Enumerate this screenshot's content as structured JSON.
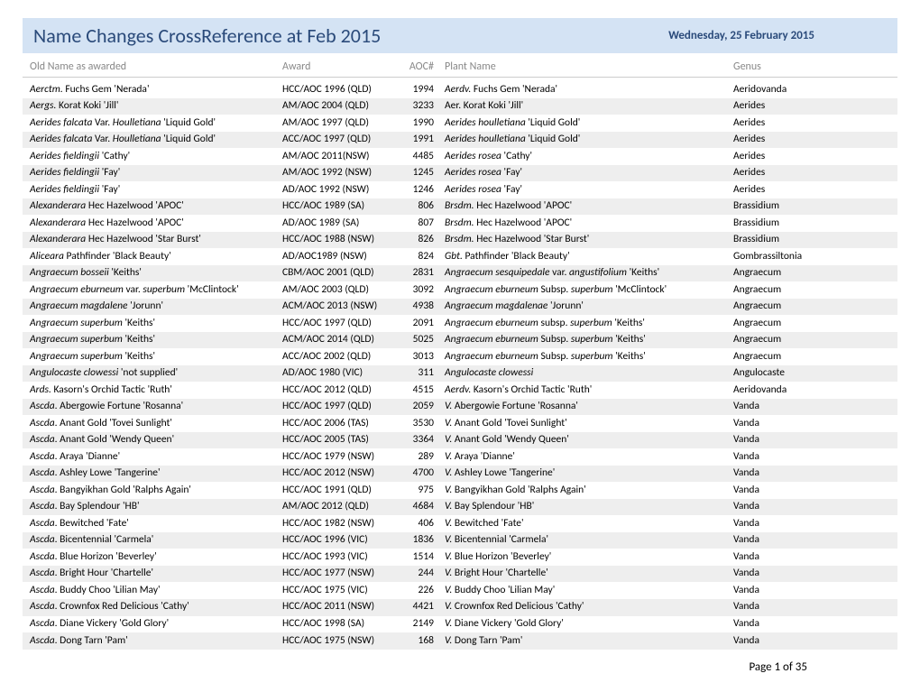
{
  "header": {
    "title": "Name Changes CrossReference at Feb 2015",
    "date": "Wednesday, 25 February 2015"
  },
  "columns": {
    "old": "Old Name as awarded",
    "award": "Award",
    "aoc": "AOC#",
    "plant": "Plant Name",
    "genus": "Genus"
  },
  "footer": {
    "page": "Page 1 of 35"
  },
  "rows": [
    {
      "old": "<i>Aerctm.</i> Fuchs Gem 'Nerada'",
      "award": "HCC/AOC 1996 (QLD)",
      "aoc": "1994",
      "plant": "<i>Aerdv.</i> Fuchs Gem 'Nerada'",
      "genus": "Aeridovanda"
    },
    {
      "old": "<i>Aergs.</i> Korat Koki 'Jill'",
      "award": "AM/AOC 2004 (QLD)",
      "aoc": "3233",
      "plant": "Aer. Korat Koki 'Jill'",
      "genus": "Aerides"
    },
    {
      "old": "<i>Aerides falcata</i> Var. <i>Houlletiana</i> 'Liquid Gold'",
      "award": "AM/AOC 1997 (QLD)",
      "aoc": "1990",
      "plant": "<i>Aerides houlletiana</i> 'Liquid Gold'",
      "genus": "Aerides"
    },
    {
      "old": "<i>Aerides falcata</i> Var. <i>Houlletiana</i> 'Liquid Gold'",
      "award": "ACC/AOC 1997 (QLD)",
      "aoc": "1991",
      "plant": "<i>Aerides houlletiana</i> 'Liquid Gold'",
      "genus": "Aerides"
    },
    {
      "old": "<i>Aerides fieldingii</i> 'Cathy'",
      "award": "AM/AOC 2011(NSW)",
      "aoc": "4485",
      "plant": "<i>Aerides rosea</i> 'Cathy'",
      "genus": "Aerides"
    },
    {
      "old": "<i>Aerides fieldingii</i> 'Fay'",
      "award": "AM/AOC 1992 (NSW)",
      "aoc": "1245",
      "plant": "<i>Aerides rosea</i> 'Fay'",
      "genus": "Aerides"
    },
    {
      "old": "<i>Aerides fieldingii</i> 'Fay'",
      "award": "AD/AOC 1992 (NSW)",
      "aoc": "1246",
      "plant": "<i>Aerides rosea</i> 'Fay'",
      "genus": "Aerides"
    },
    {
      "old": "<i>Alexanderara</i> Hec Hazelwood 'APOC'",
      "award": "HCC/AOC 1989 (SA)",
      "aoc": "806",
      "plant": "<i>Brsdm.</i> Hec Hazelwood 'APOC'",
      "genus": "Brassidium"
    },
    {
      "old": "<i>Alexanderara</i> Hec Hazelwood 'APOC'",
      "award": "AD/AOC 1989 (SA)",
      "aoc": "807",
      "plant": "<i>Brsdm.</i> Hec Hazelwood 'APOC'",
      "genus": "Brassidium"
    },
    {
      "old": "<i>Alexanderara</i> Hec Hazelwood 'Star Burst'",
      "award": "HCC/AOC 1988 (NSW)",
      "aoc": "826",
      "plant": "<i>Brsdm.</i> Hec Hazelwood 'Star Burst'",
      "genus": "Brassidium"
    },
    {
      "old": "<i>Aliceara</i> Pathfinder 'Black Beauty'",
      "award": "AD/AOC1989 (NSW)",
      "aoc": "824",
      "plant": "<i>Gbt.</i>  Pathfinder 'Black Beauty'",
      "genus": "Gombrassiltonia"
    },
    {
      "old": "<i>Angraecum bosseii</i> 'Keiths'",
      "award": "CBM/AOC 2001 (QLD)",
      "aoc": "2831",
      "plant": "<i>Angraecum sesquipedale</i> var. <i>angustifolium</i> 'Keiths'",
      "genus": "Angraecum"
    },
    {
      "old": "<i>Angraecum eburneum</i> var. <i>superbum</i> 'McClintock'",
      "award": "AM/AOC 2003 (QLD)",
      "aoc": "3092",
      "plant": "<i>Angraecum eburneum</i> Subsp. <i>superbum</i> 'McClintock'",
      "genus": "Angraecum"
    },
    {
      "old": "<i>Angraecum magdalene</i> 'Jorunn'",
      "award": "ACM/AOC 2013 (NSW)",
      "aoc": "4938",
      "plant": "<i>Angraecum magdalenae</i> 'Jorunn'",
      "genus": "Angraecum"
    },
    {
      "old": "<i>Angraecum superbum</i> 'Keiths'",
      "award": "HCC/AOC 1997 (QLD)",
      "aoc": "2091",
      "plant": "<i>Angraecum eburneum</i> subsp. <i>superbum</i> 'Keiths'",
      "genus": "Angraecum"
    },
    {
      "old": "<i>Angraecum superbum</i> 'Keiths'",
      "award": "ACM/AOC 2014 (QLD)",
      "aoc": "5025",
      "plant": "<i>Angraecum eburneum</i> Subsp. <i>superbum</i> 'Keiths'",
      "genus": "Angraecum"
    },
    {
      "old": "<i>Angraecum superbum</i> 'Keiths'",
      "award": "ACC/AOC 2002 (QLD)",
      "aoc": "3013",
      "plant": "<i>Angraecum eburneum</i> Subsp. <i>superbum</i> 'Keiths'",
      "genus": "Angraecum"
    },
    {
      "old": "<i>Angulocaste clowessi</i> 'not supplied'",
      "award": "AD/AOC 1980 (VIC)",
      "aoc": "311",
      "plant": "<i>Angulocaste clowessi</i>",
      "genus": "Angulocaste"
    },
    {
      "old": "<i>Ards.</i> Kasorn's Orchid Tactic 'Ruth'",
      "award": "HCC/AOC 2012 (QLD)",
      "aoc": "4515",
      "plant": "<i>Aerdv.</i> Kasorn's Orchid Tactic 'Ruth'",
      "genus": "Aeridovanda"
    },
    {
      "old": "<i>Ascda</i>. Abergowie Fortune 'Rosanna'",
      "award": "HCC/AOC 1997 (QLD)",
      "aoc": "2059",
      "plant": "<i>V.</i> Abergowie Fortune 'Rosanna'",
      "genus": "Vanda"
    },
    {
      "old": "<i>Ascda</i>. Anant Gold 'Tovei Sunlight'",
      "award": "HCC/AOC 2006 (TAS)",
      "aoc": "3530",
      "plant": "<i>V.</i> Anant Gold 'Tovei Sunlight'",
      "genus": "Vanda"
    },
    {
      "old": "<i>Ascda</i>. Anant Gold 'Wendy Queen'",
      "award": "HCC/AOC 2005 (TAS)",
      "aoc": "3364",
      "plant": "<i>V.</i> Anant Gold 'Wendy Queen'",
      "genus": "Vanda"
    },
    {
      "old": "<i>Ascda</i>. Araya 'Dianne'",
      "award": "HCC/AOC 1979 (NSW)",
      "aoc": "289",
      "plant": "<i>V.</i> Araya 'Dianne'",
      "genus": "Vanda"
    },
    {
      "old": "<i>Ascda</i>. Ashley Lowe 'Tangerine'",
      "award": "HCC/AOC 2012 (NSW)",
      "aoc": "4700",
      "plant": "<i>V.</i> Ashley Lowe 'Tangerine'",
      "genus": "Vanda"
    },
    {
      "old": "<i>Ascda</i>. Bangyikhan Gold 'Ralphs Again'",
      "award": "HCC/AOC  1991 (QLD)",
      "aoc": "975",
      "plant": "<i>V.</i> Bangyikhan Gold 'Ralphs Again'",
      "genus": "Vanda"
    },
    {
      "old": "<i>Ascda</i>. Bay Splendour 'HB'",
      "award": "AM/AOC 2012 (QLD)",
      "aoc": "4684",
      "plant": "<i>V.</i> Bay Splendour 'HB'",
      "genus": "Vanda"
    },
    {
      "old": "<i>Ascda</i>. Bewitched 'Fate'",
      "award": "HCC/AOC 1982 (NSW)",
      "aoc": "406",
      "plant": "<i>V.</i> Bewitched 'Fate'",
      "genus": "Vanda"
    },
    {
      "old": "<i>Ascda</i>. Bicentennial 'Carmela'",
      "award": "HCC/AOC 1996 (VIC)",
      "aoc": "1836",
      "plant": "<i>V.</i> Bicentennial 'Carmela'",
      "genus": "Vanda"
    },
    {
      "old": "<i>Ascda</i>. Blue Horizon 'Beverley'",
      "award": "HCC/AOC 1993 (VIC)",
      "aoc": "1514",
      "plant": "<i>V.</i> Blue Horizon 'Beverley'",
      "genus": "Vanda"
    },
    {
      "old": "<i>Ascda</i>. Bright Hour 'Chartelle'",
      "award": "HCC/AOC 1977 (NSW)",
      "aoc": "244",
      "plant": "<i>V.</i> Bright Hour 'Chartelle'",
      "genus": "Vanda"
    },
    {
      "old": "<i>Ascda</i>. Buddy Choo 'Lilian May'",
      "award": "HCC/AOC 1975 (VIC)",
      "aoc": "226",
      "plant": "<i>V.</i> Buddy Choo 'Lilian May'",
      "genus": "Vanda"
    },
    {
      "old": "<i>Ascda</i>. Crownfox Red Delicious 'Cathy'",
      "award": "HCC/AOC 2011 (NSW)",
      "aoc": "4421",
      "plant": "<i>V.</i> Crownfox Red Delicious 'Cathy'",
      "genus": "Vanda"
    },
    {
      "old": "<i>Ascda</i>. Diane Vickery 'Gold Glory'",
      "award": "HCC/AOC 1998 (SA)",
      "aoc": "2149",
      "plant": "<i>V.</i> Diane Vickery 'Gold Glory'",
      "genus": "Vanda"
    },
    {
      "old": "<i>Ascda</i>. Dong Tarn 'Pam'",
      "award": "HCC/AOC 1975 (NSW)",
      "aoc": "168",
      "plant": "<i>V.</i> Dong Tarn 'Pam'",
      "genus": "Vanda"
    }
  ]
}
